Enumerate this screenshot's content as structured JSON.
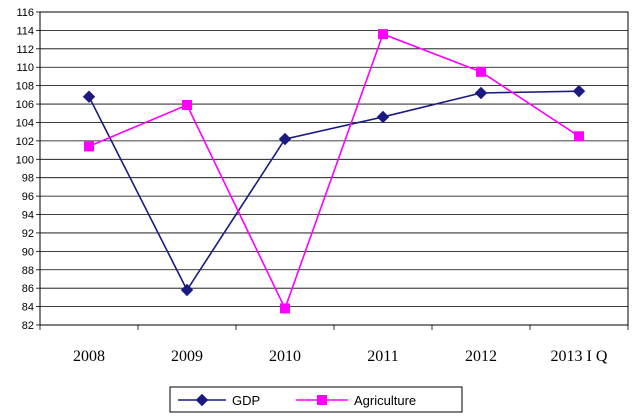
{
  "chart_data": {
    "type": "line",
    "categories": [
      "2008",
      "2009",
      "2010",
      "2011",
      "2012",
      "2013 I Q"
    ],
    "ylim": [
      82,
      116
    ],
    "yticks": [
      82,
      84,
      86,
      88,
      90,
      92,
      94,
      96,
      98,
      100,
      102,
      104,
      106,
      108,
      110,
      112,
      114,
      116
    ],
    "grid": true,
    "legend_position": "bottom",
    "series": [
      {
        "name": "GDP",
        "color": "#1a1a80",
        "marker": "diamond",
        "values": [
          106.8,
          85.8,
          102.2,
          104.6,
          107.2,
          107.4
        ]
      },
      {
        "name": "Agriculture",
        "color": "#ff00ff",
        "marker": "square",
        "values": [
          101.4,
          105.9,
          83.8,
          113.6,
          109.5,
          102.5
        ]
      }
    ]
  }
}
